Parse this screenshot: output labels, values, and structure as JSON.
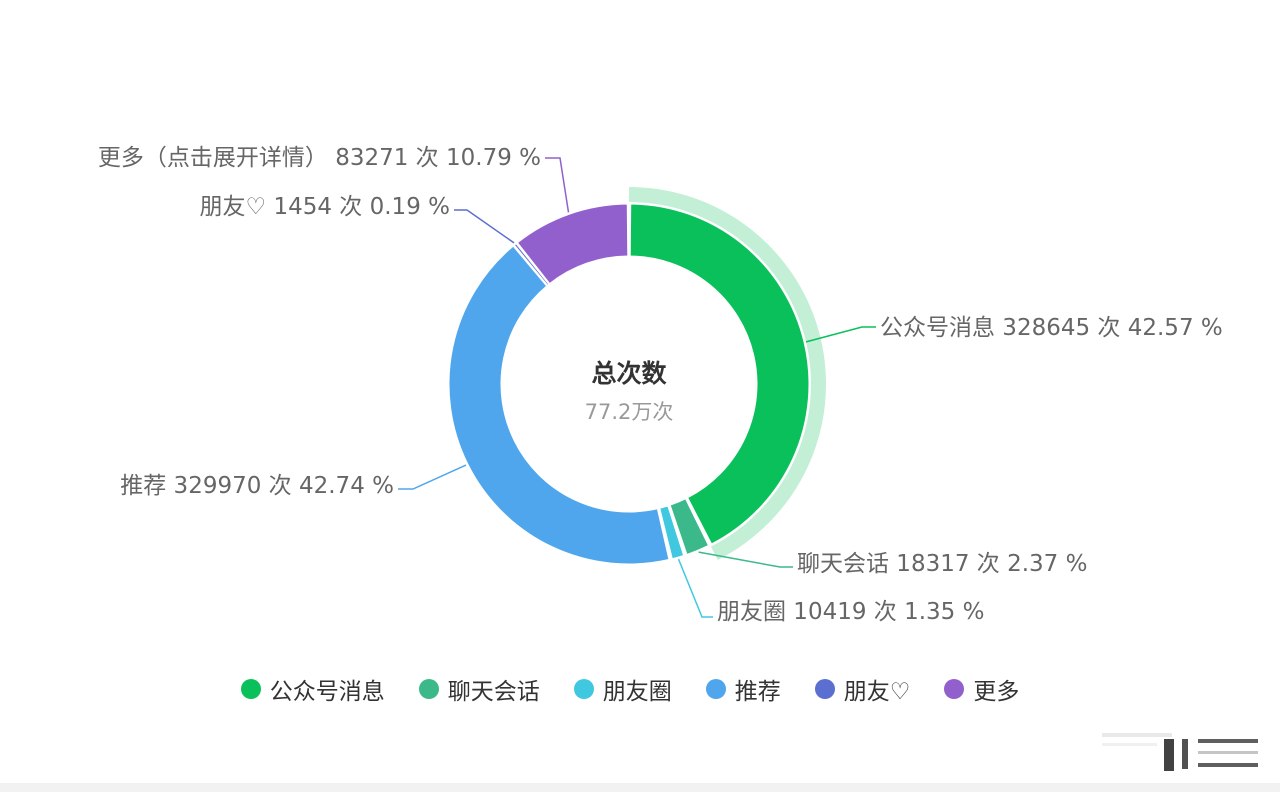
{
  "chart_data": {
    "type": "pie",
    "center": {
      "title": "总次数",
      "subtitle": "77.2万次"
    },
    "unit": "次",
    "slices": [
      {
        "name": "公众号消息",
        "value": 328645,
        "percent": "42.57",
        "color": "#0ac05a",
        "highlighted": true,
        "label": "公众号消息 328645 次 42.57 %"
      },
      {
        "name": "聊天会话",
        "value": 18317,
        "percent": "2.37",
        "color": "#3cb98a",
        "highlighted": false,
        "label": "聊天会话 18317 次 2.37 %"
      },
      {
        "name": "朋友圈",
        "value": 10419,
        "percent": "1.35",
        "color": "#40c8e0",
        "highlighted": false,
        "label": "朋友圈 10419 次 1.35 %"
      },
      {
        "name": "推荐",
        "value": 329970,
        "percent": "42.74",
        "color": "#50a6ec",
        "highlighted": false,
        "label": "推荐 329970 次 42.74 %"
      },
      {
        "name": "朋友♡",
        "value": 1454,
        "percent": "0.19",
        "color": "#5b6fd0",
        "highlighted": false,
        "label": "朋友♡ 1454 次 0.19 %"
      },
      {
        "name": "更多",
        "value": 83271,
        "percent": "10.79",
        "color": "#9160cc",
        "highlighted": false,
        "label": "更多（点击展开详情） 83271 次 10.79 %"
      }
    ],
    "legend": {
      "position": "bottom",
      "items": [
        "公众号消息",
        "聊天会话",
        "朋友圈",
        "推荐",
        "朋友♡",
        "更多"
      ]
    }
  }
}
